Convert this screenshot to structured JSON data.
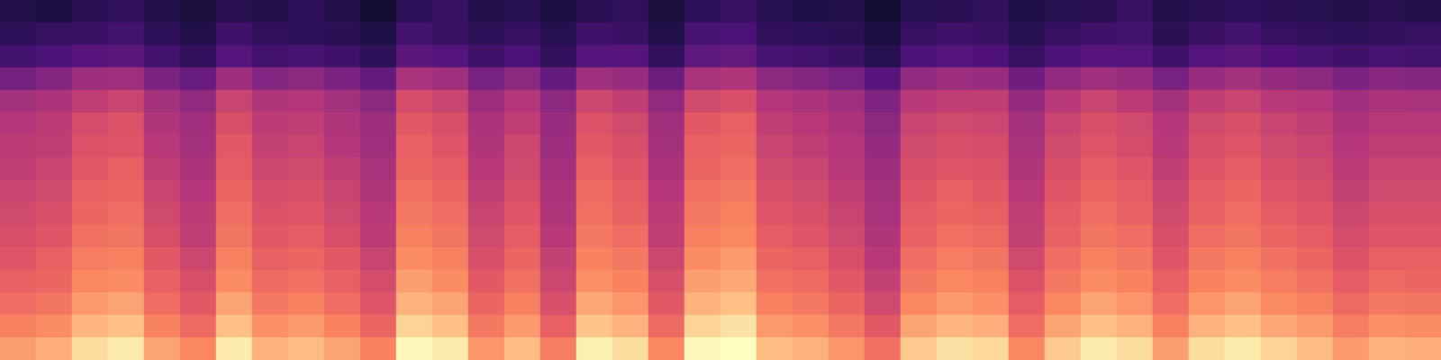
{
  "chart_data": {
    "type": "heatmap",
    "tick_labels": false,
    "color_range": [
      0,
      100
    ],
    "colors": [
      "#000004",
      "#1c1044",
      "#4f127b",
      "#812581",
      "#b5367a",
      "#e55964",
      "#fb8761",
      "#fec287",
      "#fcfdbf"
    ],
    "cells": [
      [
        14,
        12,
        16,
        18,
        14,
        11,
        16,
        14,
        17,
        14,
        10,
        17,
        19,
        14,
        15,
        12,
        16,
        18,
        11,
        17,
        19,
        15,
        13,
        14,
        10,
        15,
        16,
        18,
        13,
        15,
        16,
        19,
        14,
        16,
        17,
        16,
        15,
        14,
        16,
        14
      ],
      [
        17,
        19,
        20,
        22,
        17,
        14,
        21,
        18,
        17,
        16,
        13,
        22,
        20,
        17,
        19,
        15,
        21,
        20,
        14,
        23,
        24,
        18,
        17,
        16,
        12,
        19,
        21,
        20,
        15,
        19,
        21,
        22,
        16,
        20,
        22,
        19,
        18,
        17,
        18,
        19
      ],
      [
        22,
        24,
        27,
        28,
        22,
        18,
        26,
        22,
        23,
        21,
        17,
        28,
        26,
        21,
        24,
        18,
        26,
        27,
        18,
        29,
        30,
        23,
        22,
        20,
        15,
        24,
        26,
        25,
        19,
        24,
        27,
        26,
        21,
        26,
        28,
        25,
        23,
        21,
        23,
        22
      ],
      [
        34,
        38,
        44,
        45,
        36,
        31,
        44,
        38,
        40,
        36,
        30,
        47,
        45,
        35,
        40,
        30,
        45,
        43,
        32,
        47,
        49,
        40,
        38,
        35,
        27,
        41,
        44,
        43,
        33,
        41,
        45,
        43,
        35,
        43,
        46,
        42,
        40,
        36,
        39,
        38
      ],
      [
        46,
        48,
        53,
        55,
        46,
        41,
        55,
        49,
        50,
        46,
        40,
        58,
        55,
        44,
        50,
        40,
        56,
        53,
        41,
        57,
        59,
        50,
        48,
        45,
        37,
        51,
        53,
        53,
        42,
        51,
        55,
        52,
        46,
        53,
        55,
        51,
        50,
        45,
        48,
        47
      ],
      [
        50,
        52,
        58,
        60,
        49,
        45,
        59,
        52,
        53,
        49,
        44,
        62,
        59,
        48,
        53,
        43,
        60,
        57,
        45,
        62,
        64,
        53,
        51,
        48,
        40,
        55,
        57,
        56,
        46,
        55,
        59,
        57,
        50,
        57,
        59,
        55,
        53,
        48,
        51,
        51
      ],
      [
        52,
        53,
        60,
        61,
        51,
        46,
        62,
        54,
        55,
        50,
        45,
        64,
        61,
        49,
        56,
        44,
        62,
        59,
        46,
        64,
        66,
        55,
        53,
        50,
        42,
        57,
        59,
        58,
        47,
        57,
        61,
        58,
        51,
        59,
        61,
        57,
        55,
        50,
        53,
        53
      ],
      [
        53,
        55,
        62,
        64,
        53,
        48,
        63,
        56,
        57,
        53,
        47,
        66,
        63,
        51,
        57,
        46,
        64,
        61,
        48,
        66,
        68,
        57,
        55,
        51,
        44,
        59,
        61,
        60,
        49,
        59,
        63,
        61,
        53,
        61,
        63,
        59,
        57,
        52,
        55,
        55
      ],
      [
        55,
        57,
        64,
        66,
        55,
        50,
        66,
        58,
        59,
        55,
        49,
        69,
        66,
        53,
        59,
        48,
        67,
        63,
        50,
        69,
        71,
        59,
        57,
        53,
        46,
        61,
        64,
        62,
        51,
        61,
        66,
        63,
        55,
        63,
        66,
        61,
        59,
        54,
        57,
        57
      ],
      [
        57,
        59,
        66,
        68,
        57,
        52,
        68,
        60,
        61,
        57,
        51,
        71,
        68,
        55,
        61,
        49,
        69,
        65,
        52,
        71,
        73,
        61,
        59,
        55,
        47,
        63,
        66,
        64,
        53,
        63,
        68,
        65,
        57,
        65,
        68,
        63,
        61,
        56,
        59,
        59
      ],
      [
        59,
        61,
        69,
        70,
        59,
        53,
        70,
        62,
        63,
        59,
        52,
        73,
        70,
        57,
        63,
        51,
        71,
        68,
        53,
        73,
        75,
        63,
        61,
        57,
        49,
        65,
        69,
        67,
        54,
        65,
        70,
        68,
        59,
        68,
        70,
        66,
        63,
        58,
        61,
        61
      ],
      [
        61,
        64,
        72,
        73,
        62,
        56,
        73,
        65,
        66,
        62,
        55,
        76,
        73,
        59,
        66,
        54,
        74,
        71,
        56,
        76,
        79,
        66,
        64,
        59,
        51,
        68,
        72,
        70,
        57,
        68,
        73,
        71,
        61,
        71,
        73,
        69,
        66,
        60,
        64,
        64
      ],
      [
        64,
        66,
        75,
        76,
        64,
        59,
        76,
        67,
        69,
        64,
        58,
        80,
        76,
        62,
        69,
        56,
        77,
        74,
        59,
        80,
        82,
        69,
        67,
        62,
        54,
        71,
        75,
        73,
        60,
        71,
        76,
        74,
        64,
        74,
        76,
        72,
        69,
        63,
        67,
        66
      ],
      [
        68,
        70,
        79,
        81,
        68,
        62,
        81,
        71,
        73,
        68,
        61,
        84,
        81,
        66,
        73,
        59,
        82,
        78,
        62,
        84,
        87,
        73,
        71,
        66,
        57,
        75,
        79,
        77,
        63,
        75,
        81,
        78,
        68,
        78,
        81,
        76,
        73,
        67,
        71,
        70
      ],
      [
        73,
        76,
        85,
        87,
        74,
        67,
        87,
        77,
        79,
        74,
        66,
        91,
        87,
        71,
        79,
        64,
        88,
        84,
        67,
        91,
        94,
        79,
        77,
        71,
        62,
        81,
        85,
        83,
        68,
        81,
        87,
        84,
        73,
        84,
        87,
        82,
        79,
        72,
        77,
        76
      ],
      [
        80,
        83,
        93,
        96,
        81,
        75,
        96,
        84,
        86,
        81,
        74,
        99,
        96,
        78,
        86,
        72,
        97,
        93,
        75,
        99,
        100,
        86,
        84,
        78,
        69,
        89,
        94,
        92,
        75,
        89,
        96,
        93,
        80,
        93,
        96,
        91,
        86,
        79,
        84,
        83
      ]
    ]
  }
}
